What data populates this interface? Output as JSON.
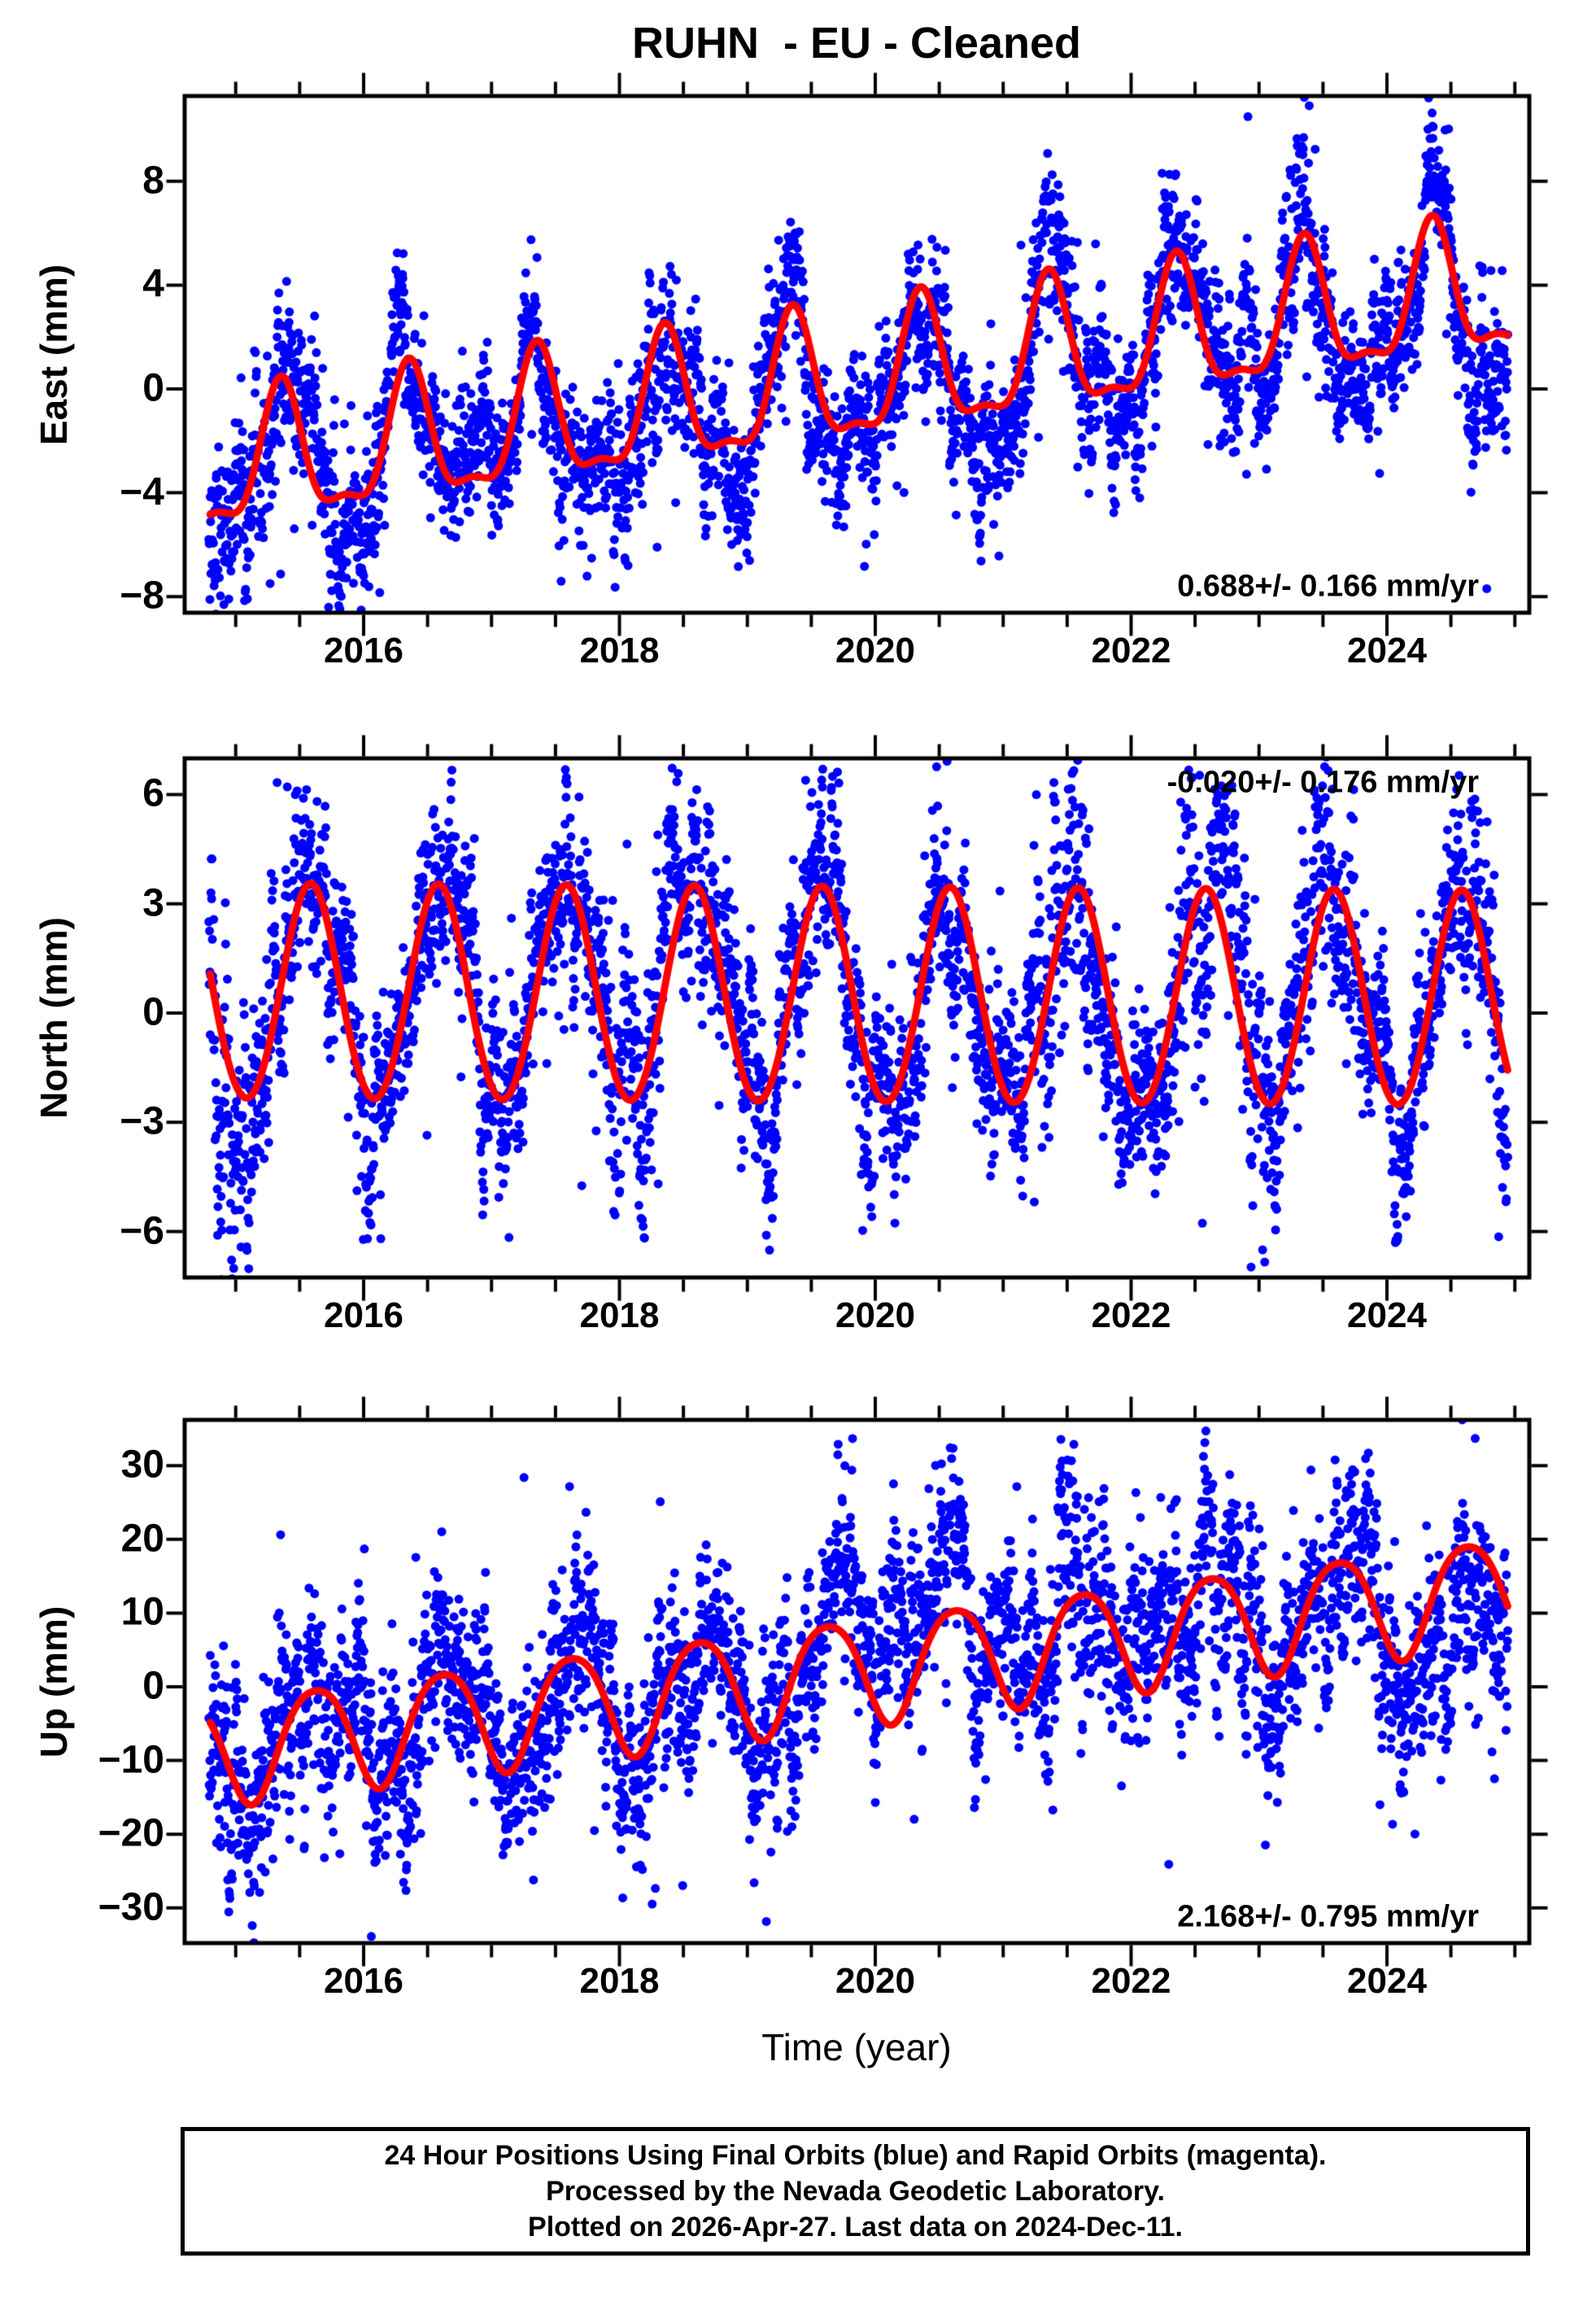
{
  "title": "RUHN  - EU - Cleaned",
  "station": "RUHN",
  "reference_frame": "EU",
  "series_state": "Cleaned",
  "x_axis": {
    "label": "Time (year)",
    "tick_values": [
      2016,
      2018,
      2020,
      2022,
      2024
    ],
    "tick_labels": [
      "2016",
      "2018",
      "2020",
      "2022",
      "2024"
    ],
    "minor_tick_step_years": 0.5,
    "range_years": [
      2014.6,
      2025.11
    ]
  },
  "colors": {
    "points_final_orbits": "#0000ff",
    "points_rapid_orbits": "#ff00ff",
    "model_curve": "#ff0000",
    "frame": "#000000",
    "background": "#ffffff"
  },
  "footer": {
    "lines": [
      "24 Hour Positions Using Final Orbits (blue) and Rapid Orbits (magenta).",
      "Processed by the Nevada Geodetic Laboratory.",
      "Plotted on 2026-Apr-27. Last data on 2024-Dec-11."
    ]
  },
  "chart_data": [
    {
      "type": "scatter",
      "component": "East",
      "ylabel": "East (mm)",
      "ylim_mm": [
        -8.6,
        11.3
      ],
      "ytick_values": [
        8,
        4,
        0,
        -4,
        -8
      ],
      "ytick_labels": [
        "8",
        "4",
        "0",
        "−4",
        "−8"
      ],
      "annotation": {
        "text": "0.688+/- 0.166 mm/yr",
        "corner": "bottom-right"
      },
      "velocity_mm_per_yr": 0.688,
      "velocity_sigma_mm_per_yr": 0.166,
      "x_range_years": [
        2014.79,
        2024.945
      ],
      "model": {
        "intercept_mm_at_2015": -3.05,
        "slope_mm_per_yr": 0.688,
        "annual_amplitude_mm": 2.45,
        "annual_peak_year_fraction": 0.355,
        "semiannual_amplitude_mm": 0.85,
        "semiannual_peak_year_fraction": 0.355
      },
      "scatter": {
        "seed": 11,
        "daily_sigma_mm": 1.0,
        "ar_coef": 0.95,
        "ar_sigma_mm": 0.42,
        "outlier_prob": 0.07,
        "outlier_scale_mm": 2.0,
        "outlier_downward_bias": 0.72,
        "noisy_windows": [
          {
            "from": 2014.79,
            "to": 2015.9,
            "sigma_mult": 1.35
          },
          {
            "from": 2017.95,
            "to": 2018.6,
            "sigma_mult": 1.25
          },
          {
            "from": 2021.3,
            "to": 2021.65,
            "sigma_mult": 1.2
          },
          {
            "from": 2023.2,
            "to": 2023.55,
            "sigma_mult": 1.55
          }
        ]
      }
    },
    {
      "type": "scatter",
      "component": "North",
      "ylabel": "North (mm)",
      "ylim_mm": [
        -7.3,
        7.0
      ],
      "ytick_values": [
        6,
        3,
        0,
        -3,
        -6
      ],
      "ytick_labels": [
        "6",
        "3",
        "0",
        "−3",
        "−6"
      ],
      "annotation": {
        "text": "-0.020+/- 0.176 mm/yr",
        "corner": "top-right"
      },
      "velocity_mm_per_yr": -0.02,
      "velocity_sigma_mm_per_yr": 0.176,
      "x_range_years": [
        2014.79,
        2024.945
      ],
      "model": {
        "intercept_mm_at_2015": 0.52,
        "slope_mm_per_yr": -0.02,
        "annual_amplitude_mm": 2.95,
        "annual_peak_year_fraction": 0.585,
        "semiannual_amplitude_mm": 0.1,
        "semiannual_peak_year_fraction": 0.585
      },
      "scatter": {
        "seed": 22,
        "daily_sigma_mm": 0.95,
        "ar_coef": 0.95,
        "ar_sigma_mm": 0.4,
        "outlier_prob": 0.07,
        "outlier_scale_mm": 1.8,
        "outlier_downward_bias": 0.6,
        "noisy_windows": [
          {
            "from": 2014.79,
            "to": 2015.3,
            "sigma_mult": 1.3
          },
          {
            "from": 2017.9,
            "to": 2018.35,
            "sigma_mult": 1.5
          },
          {
            "from": 2021.25,
            "to": 2021.7,
            "sigma_mult": 2.0
          },
          {
            "from": 2022.25,
            "to": 2023.05,
            "sigma_mult": 1.55
          },
          {
            "from": 2023.3,
            "to": 2023.75,
            "sigma_mult": 1.6
          },
          {
            "from": 2024.55,
            "to": 2024.945,
            "sigma_mult": 1.3
          }
        ]
      }
    },
    {
      "type": "scatter",
      "component": "Up",
      "ylabel": "Up (mm)",
      "ylim_mm": [
        -34.8,
        36.2
      ],
      "ytick_values": [
        30,
        20,
        10,
        0,
        -10,
        -20,
        -30
      ],
      "ytick_labels": [
        "30",
        "20",
        "10",
        "0",
        "−10",
        "−20",
        "−30"
      ],
      "annotation": {
        "text": "2.168+/- 0.795 mm/yr",
        "corner": "bottom-right"
      },
      "velocity_mm_per_yr": 2.168,
      "velocity_sigma_mm_per_yr": 0.795,
      "x_range_years": [
        2014.79,
        2024.945
      ],
      "model": {
        "intercept_mm_at_2015": -8.2,
        "slope_mm_per_yr": 2.168,
        "annual_amplitude_mm": 7.2,
        "annual_peak_year_fraction": 0.625,
        "semiannual_amplitude_mm": 0.9,
        "semiannual_peak_year_fraction": 0.375
      },
      "scatter": {
        "seed": 33,
        "daily_sigma_mm": 4.6,
        "ar_coef": 0.95,
        "ar_sigma_mm": 2.0,
        "outlier_prob": 0.06,
        "outlier_scale_mm": 8.5,
        "outlier_downward_bias": 0.45,
        "noisy_windows": [
          {
            "from": 2014.79,
            "to": 2015.45,
            "sigma_mult": 1.25
          },
          {
            "from": 2021.35,
            "to": 2022.1,
            "sigma_mult": 1.35
          },
          {
            "from": 2022.5,
            "to": 2023.1,
            "sigma_mult": 1.3
          },
          {
            "from": 2023.5,
            "to": 2024.945,
            "sigma_mult": 1.25
          }
        ]
      }
    }
  ]
}
